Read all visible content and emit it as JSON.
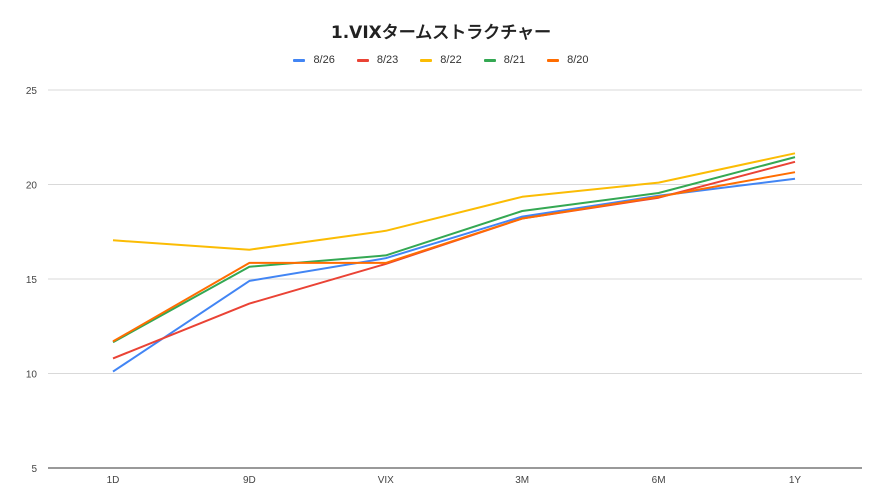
{
  "chart_data": {
    "type": "line",
    "title": "1.VIXタームストラクチャー",
    "xlabel": "",
    "ylabel": "",
    "categories": [
      "1D",
      "9D",
      "VIX",
      "3M",
      "6M",
      "1Y"
    ],
    "ylim": [
      5,
      25
    ],
    "yticks": [
      5,
      10,
      15,
      20,
      25
    ],
    "grid": true,
    "legend_position": "top",
    "series": [
      {
        "name": "8/26",
        "color": "#4285f4",
        "values": [
          10.1,
          14.9,
          16.1,
          18.3,
          19.4,
          20.3
        ]
      },
      {
        "name": "8/23",
        "color": "#ea4335",
        "values": [
          10.8,
          13.7,
          15.8,
          18.2,
          19.3,
          21.2
        ]
      },
      {
        "name": "8/22",
        "color": "#fbbc04",
        "values": [
          17.05,
          16.55,
          17.55,
          19.35,
          20.1,
          21.65
        ]
      },
      {
        "name": "8/21",
        "color": "#34a853",
        "values": [
          11.65,
          15.65,
          16.25,
          18.6,
          19.55,
          21.45
        ]
      },
      {
        "name": "8/20",
        "color": "#ff6d01",
        "values": [
          11.7,
          15.85,
          15.85,
          18.2,
          19.35,
          20.65
        ]
      }
    ]
  }
}
